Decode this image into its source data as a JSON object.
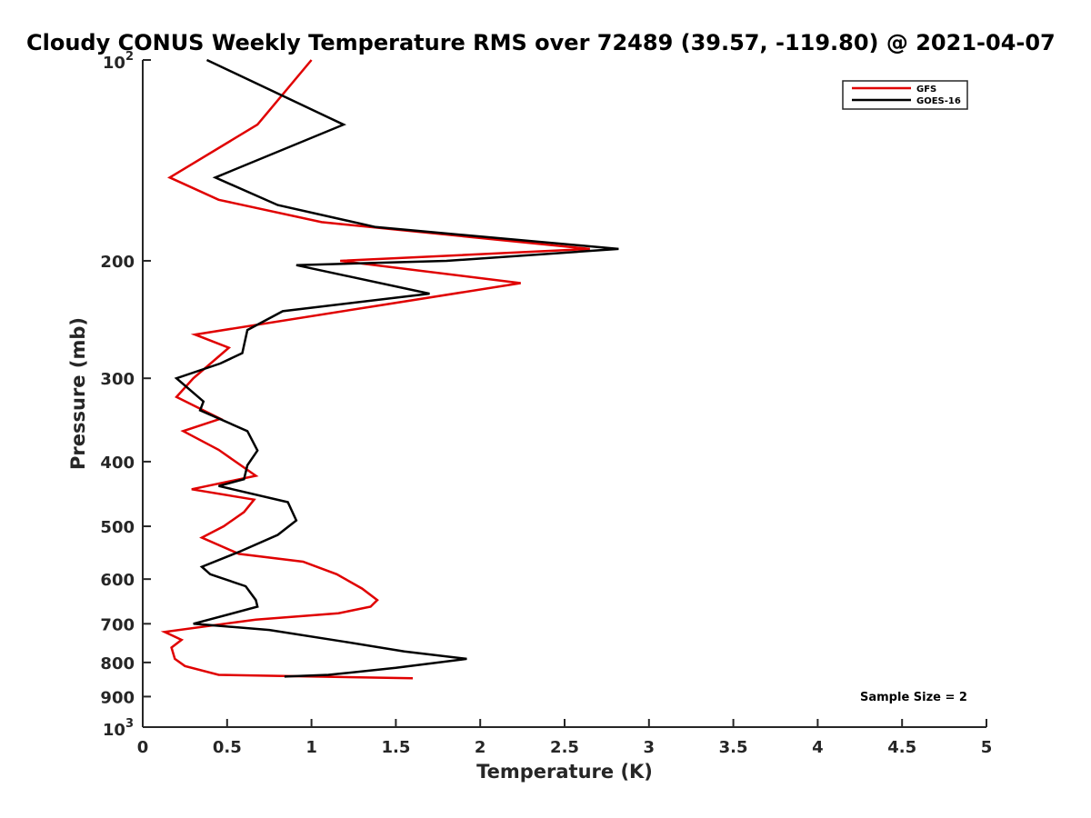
{
  "chart_data": {
    "type": "line",
    "title": "Cloudy CONUS Weekly Temperature RMS over 72489 (39.57, -119.80) @ 2021-04-07",
    "xlabel": "Temperature (K)",
    "ylabel": "Pressure (mb)",
    "xlim": [
      0,
      5
    ],
    "ylim": [
      100,
      1000
    ],
    "y_scale": "log",
    "y_reversed": true,
    "x_ticks": [
      "0",
      "0.5",
      "1",
      "1.5",
      "2",
      "2.5",
      "3",
      "3.5",
      "4",
      "4.5",
      "5"
    ],
    "y_ticks": [
      {
        "value": 100,
        "base": "10",
        "exp": "2"
      },
      {
        "value": 200,
        "label": "200"
      },
      {
        "value": 300,
        "label": "300"
      },
      {
        "value": 400,
        "label": "400"
      },
      {
        "value": 500,
        "label": "500"
      },
      {
        "value": 600,
        "label": "600"
      },
      {
        "value": 700,
        "label": "700"
      },
      {
        "value": 800,
        "label": "800"
      },
      {
        "value": 900,
        "label": "900"
      },
      {
        "value": 1000,
        "base": "10",
        "exp": "3"
      }
    ],
    "grid": false,
    "legend_position": "top-right",
    "annotation": "Sample Size = 2",
    "series": [
      {
        "name": "GFS",
        "color": "#e00000",
        "points": [
          [
            1.0,
            100
          ],
          [
            0.68,
            125
          ],
          [
            0.16,
            150
          ],
          [
            0.45,
            162
          ],
          [
            1.06,
            175
          ],
          [
            2.65,
            192
          ],
          [
            1.17,
            200
          ],
          [
            2.24,
            216
          ],
          [
            1.37,
            234
          ],
          [
            0.31,
            258
          ],
          [
            0.51,
            270
          ],
          [
            0.3,
            300
          ],
          [
            0.2,
            320
          ],
          [
            0.46,
            345
          ],
          [
            0.24,
            360
          ],
          [
            0.45,
            384
          ],
          [
            0.67,
            420
          ],
          [
            0.29,
            440
          ],
          [
            0.66,
            456
          ],
          [
            0.6,
            476
          ],
          [
            0.48,
            500
          ],
          [
            0.35,
            520
          ],
          [
            0.57,
            550
          ],
          [
            0.95,
            565
          ],
          [
            1.15,
            590
          ],
          [
            1.3,
            620
          ],
          [
            1.39,
            645
          ],
          [
            1.35,
            660
          ],
          [
            1.16,
            675
          ],
          [
            0.67,
            690
          ],
          [
            0.13,
            720
          ],
          [
            0.23,
            740
          ],
          [
            0.17,
            760
          ],
          [
            0.19,
            790
          ],
          [
            0.25,
            810
          ],
          [
            0.45,
            835
          ],
          [
            1.6,
            845
          ]
        ]
      },
      {
        "name": "GOES-16",
        "color": "#000000",
        "points": [
          [
            0.38,
            100
          ],
          [
            1.19,
            125
          ],
          [
            0.43,
            150
          ],
          [
            0.8,
            165
          ],
          [
            1.38,
            178
          ],
          [
            2.82,
            192
          ],
          [
            1.8,
            200
          ],
          [
            0.91,
            203
          ],
          [
            1.7,
            224
          ],
          [
            0.83,
            238
          ],
          [
            0.62,
            254
          ],
          [
            0.59,
            275
          ],
          [
            0.46,
            285
          ],
          [
            0.2,
            300
          ],
          [
            0.36,
            325
          ],
          [
            0.34,
            335
          ],
          [
            0.62,
            360
          ],
          [
            0.68,
            385
          ],
          [
            0.62,
            405
          ],
          [
            0.6,
            425
          ],
          [
            0.45,
            435
          ],
          [
            0.86,
            460
          ],
          [
            0.91,
            490
          ],
          [
            0.8,
            515
          ],
          [
            0.58,
            545
          ],
          [
            0.35,
            575
          ],
          [
            0.4,
            590
          ],
          [
            0.61,
            615
          ],
          [
            0.67,
            645
          ],
          [
            0.68,
            660
          ],
          [
            0.3,
            700
          ],
          [
            0.75,
            715
          ],
          [
            1.2,
            745
          ],
          [
            1.55,
            770
          ],
          [
            1.92,
            790
          ],
          [
            1.5,
            815
          ],
          [
            1.1,
            835
          ],
          [
            0.84,
            840
          ]
        ]
      }
    ]
  }
}
